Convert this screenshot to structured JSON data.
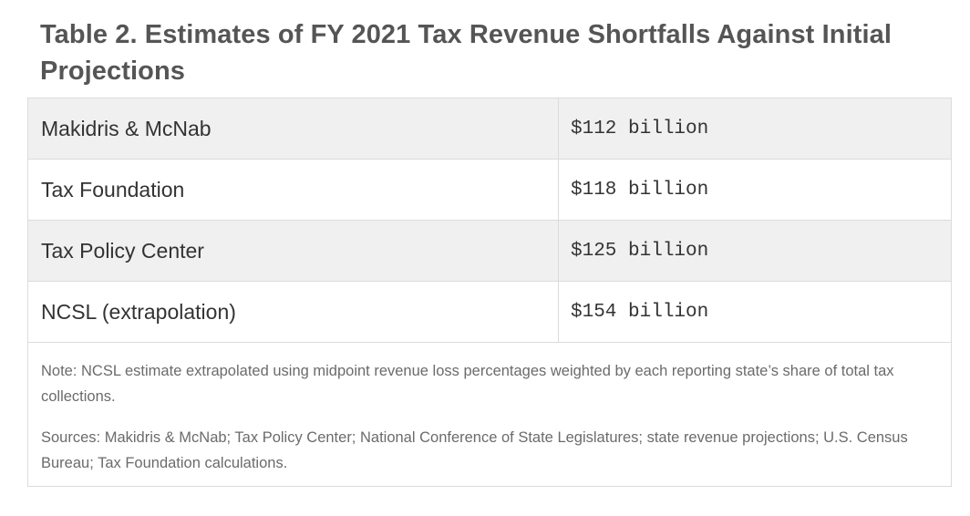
{
  "title": "Table 2. Estimates of FY 2021 Tax Revenue Shortfalls Against Initial Projections",
  "rows": [
    {
      "source": "Makidris & McNab",
      "estimate": "$112 billion"
    },
    {
      "source": "Tax Foundation",
      "estimate": "$118 billion"
    },
    {
      "source": "Tax Policy Center",
      "estimate": "$125 billion"
    },
    {
      "source": "NCSL (extrapolation)",
      "estimate": "$154 billion"
    }
  ],
  "note": "Note: NCSL estimate extrapolated using midpoint revenue loss percentages weighted by each reporting state’s share of total tax collections.",
  "sources": "Sources: Makidris & McNab; Tax Policy Center; National Conference of State Legislatures; state revenue projections; U.S. Census Bureau; Tax Foundation calculations.",
  "colors": {
    "title_text": "#555555",
    "row_shade": "#f0f0f0",
    "border": "#dcdcdc",
    "note_text": "#6b6b6b"
  }
}
